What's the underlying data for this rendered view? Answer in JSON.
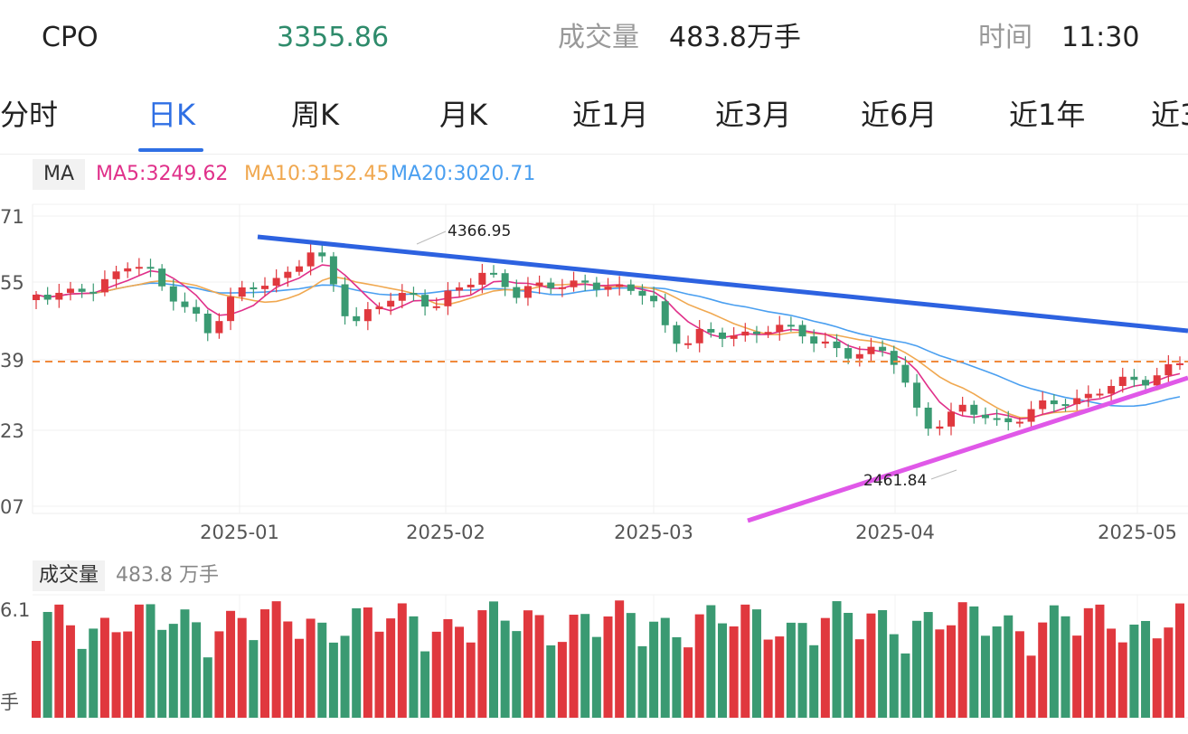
{
  "header": {
    "name": "CPO",
    "price": "3355.86",
    "volume_label": "成交量",
    "volume_value": "483.8万手",
    "time_label": "时间",
    "time_value": "11:30",
    "price_color": "#2e8b6b"
  },
  "tabs": [
    {
      "label": "分时",
      "active": false
    },
    {
      "label": "日K",
      "active": true
    },
    {
      "label": "周K",
      "active": false
    },
    {
      "label": "月K",
      "active": false
    },
    {
      "label": "近1月",
      "active": false
    },
    {
      "label": "近3月",
      "active": false
    },
    {
      "label": "近6月",
      "active": false
    },
    {
      "label": "近1年",
      "active": false
    },
    {
      "label": "近3",
      "active": false
    }
  ],
  "ma": {
    "tag": "MA",
    "ma5": "MA5:3249.62",
    "ma10": "MA10:3152.45",
    "ma20": "MA20:3020.71",
    "ma5_color": "#e0308a",
    "ma10_color": "#f0a850",
    "ma20_color": "#4a9ff0"
  },
  "volume_panel": {
    "tag": "成交量",
    "value": "483.8 万手",
    "axis_top": "6.1",
    "axis_unit": "手"
  },
  "chart_data": {
    "type": "candlestick",
    "y_tick_labels": [
      "71",
      "55",
      "39",
      "23",
      "07"
    ],
    "x_tick_labels": [
      "2025-01",
      "2025-02",
      "2025-03",
      "2025-04",
      "2025-05"
    ],
    "annotations": {
      "high": "4366.95",
      "low": "2461.84"
    },
    "up_color": "#e0383e",
    "down_color": "#3a9a72"
  }
}
